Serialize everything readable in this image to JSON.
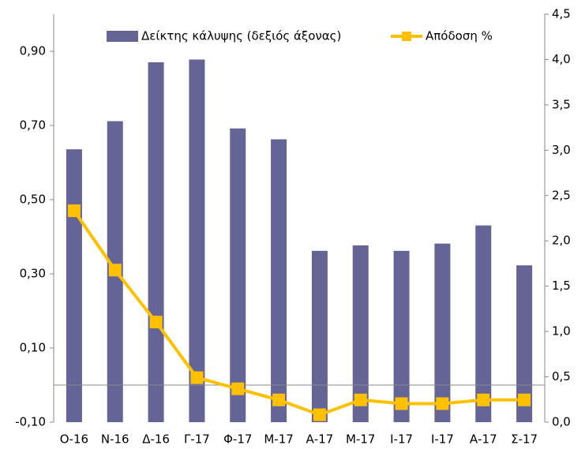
{
  "chart_data": {
    "type": "bar_line",
    "categories": [
      "Ο-16",
      "Ν-16",
      "Δ-16",
      "Γ-17",
      "Φ-17",
      "Μ-17",
      "Α-17",
      "Μ-17",
      "Ι-17",
      "Ι-17",
      "Α-17",
      "Σ-17"
    ],
    "series": [
      {
        "name": "Δείκτης κάλυψης (δεξιός άξονας)",
        "type": "bar",
        "axis": "y2",
        "color": "#646496",
        "values": [
          3.01,
          3.32,
          3.97,
          4.0,
          3.24,
          3.12,
          1.89,
          1.95,
          1.89,
          1.97,
          2.17,
          1.73
        ]
      },
      {
        "name": "Απόδοση %",
        "type": "line",
        "axis": "y",
        "color": "#ffc000",
        "values": [
          0.47,
          0.31,
          0.17,
          0.02,
          -0.01,
          -0.04,
          -0.08,
          -0.04,
          -0.05,
          -0.05,
          -0.04,
          -0.04
        ]
      }
    ],
    "ylim": [
      -0.1,
      1.0
    ],
    "yticks": [
      {
        "value": -0.1,
        "label": "-0,10"
      },
      {
        "value": 0.1,
        "label": "0,10"
      },
      {
        "value": 0.3,
        "label": "0,30"
      },
      {
        "value": 0.5,
        "label": "0,50"
      },
      {
        "value": 0.7,
        "label": "0,70"
      },
      {
        "value": 0.9,
        "label": "0,90"
      }
    ],
    "y2lim": [
      0,
      4.5
    ],
    "y2ticks": [
      {
        "value": 0,
        "label": "0,0"
      },
      {
        "value": 0.5,
        "label": "0,5"
      },
      {
        "value": 1.0,
        "label": "1,0"
      },
      {
        "value": 1.5,
        "label": "1,5"
      },
      {
        "value": 2.0,
        "label": "2,0"
      },
      {
        "value": 2.5,
        "label": "2,5"
      },
      {
        "value": 3.0,
        "label": "3,0"
      },
      {
        "value": 3.5,
        "label": "3,5"
      },
      {
        "value": 4.0,
        "label": "4,0"
      },
      {
        "value": 4.5,
        "label": "4,5"
      }
    ],
    "legend": "top",
    "grid": false
  }
}
